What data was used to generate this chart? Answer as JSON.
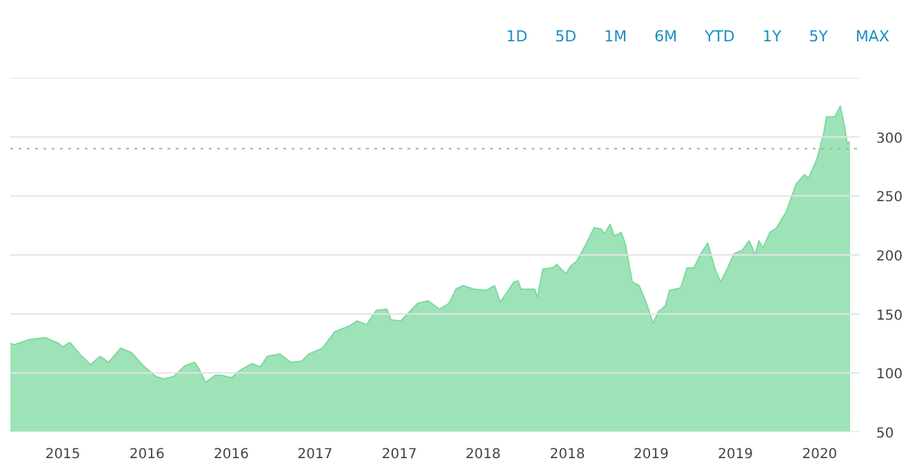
{
  "chart_data": {
    "type": "area",
    "annotations": [
      "1D",
      "5D",
      "1M",
      "6M",
      "YTD",
      "1Y",
      "5Y",
      "MAX"
    ],
    "x": [
      "2015-05-22",
      "2015-05-31",
      "2015-06-30",
      "2015-08-05",
      "2015-09-04",
      "2015-09-13",
      "2015-09-28",
      "2015-10-22",
      "2015-11-12",
      "2015-12-03",
      "2015-12-21",
      "2016-01-17",
      "2016-02-10",
      "2016-03-06",
      "2016-04-02",
      "2016-04-20",
      "2016-05-11",
      "2016-06-04",
      "2016-06-25",
      "2016-07-04",
      "2016-07-19",
      "2016-08-09",
      "2016-08-23",
      "2016-09-13",
      "2016-10-01",
      "2016-10-28",
      "2016-11-15",
      "2016-11-30",
      "2016-12-27",
      "2017-01-20",
      "2017-02-13",
      "2017-02-28",
      "2017-03-30",
      "2017-04-26",
      "2017-05-29",
      "2017-06-13",
      "2017-07-04",
      "2017-07-25",
      "2017-08-17",
      "2017-08-26",
      "2017-09-16",
      "2017-10-23",
      "2017-11-15",
      "2017-12-09",
      "2017-12-30",
      "2018-01-14",
      "2018-01-29",
      "2018-02-22",
      "2018-03-21",
      "2018-04-08",
      "2018-04-20",
      "2018-05-08",
      "2018-05-20",
      "2018-05-29",
      "2018-06-04",
      "2018-06-22",
      "2018-07-04",
      "2018-07-10",
      "2018-07-22",
      "2018-08-12",
      "2018-08-21",
      "2018-09-10",
      "2018-09-19",
      "2018-10-04",
      "2018-10-26",
      "2018-11-10",
      "2018-11-25",
      "2018-12-03",
      "2018-12-15",
      "2018-12-24",
      "2019-01-08",
      "2019-01-17",
      "2019-02-01",
      "2019-02-16",
      "2019-03-03",
      "2019-03-18",
      "2019-03-30",
      "2019-04-14",
      "2019-04-23",
      "2019-05-17",
      "2019-05-31",
      "2019-06-15",
      "2019-06-30",
      "2019-07-15",
      "2019-07-30",
      "2019-08-12",
      "2019-08-26",
      "2019-09-10",
      "2019-09-28",
      "2019-10-13",
      "2019-10-26",
      "2019-11-03",
      "2019-11-12",
      "2019-11-27",
      "2019-12-12",
      "2020-01-02",
      "2020-01-23",
      "2020-02-10",
      "2020-02-19",
      "2020-03-08",
      "2020-03-23",
      "2020-03-29",
      "2020-04-16",
      "2020-04-28",
      "2020-05-07",
      "2020-05-13",
      "2020-05-19"
    ],
    "series": [
      {
        "color": "#7ed9a0",
        "values": [
          125,
          124,
          128,
          130,
          125,
          122,
          126,
          115,
          107,
          114,
          109,
          121,
          117,
          106,
          97,
          95,
          97,
          106,
          109,
          104,
          92,
          98,
          98,
          96,
          102,
          108,
          105,
          114,
          116,
          109,
          110,
          116,
          121,
          135,
          140,
          144,
          141,
          153,
          154,
          145,
          144,
          159,
          161,
          154,
          159,
          171,
          174,
          171,
          170,
          174,
          160,
          170,
          177,
          178,
          171,
          171,
          171,
          164,
          188,
          189,
          192,
          184,
          190,
          195,
          211,
          223,
          222,
          218,
          226,
          216,
          219,
          209,
          177,
          174,
          160,
          142,
          152,
          157,
          170,
          172,
          189,
          189,
          201,
          210,
          189,
          177,
          188,
          201,
          204,
          212,
          200,
          212,
          206,
          219,
          223,
          237,
          260,
          268,
          265,
          281,
          303,
          317,
          317,
          326,
          309,
          294,
          296
        ]
      }
    ],
    "xlim": [
      "2015-05-22",
      "2020-06-09"
    ],
    "xticks": [
      {
        "value": "2015-09-13",
        "label": "2015"
      },
      {
        "value": "2016-03-14",
        "label": "2016"
      },
      {
        "value": "2016-09-13",
        "label": "2016"
      },
      {
        "value": "2017-03-14",
        "label": "2017"
      },
      {
        "value": "2017-09-13",
        "label": "2017"
      },
      {
        "value": "2018-03-14",
        "label": "2018"
      },
      {
        "value": "2018-09-13",
        "label": "2018"
      },
      {
        "value": "2019-03-14",
        "label": "2019"
      },
      {
        "value": "2019-09-13",
        "label": "2019"
      },
      {
        "value": "2020-03-14",
        "label": "2020"
      }
    ],
    "ylim": [
      50,
      350
    ],
    "yticks": [
      50,
      100,
      150,
      200,
      250,
      300,
      {
        "value": 350,
        "label": null
      }
    ],
    "grid": "y",
    "ref_lines": [
      {
        "axis": "y",
        "value": 290,
        "color": "#aaaaaa",
        "line_style": "dotted"
      }
    ]
  }
}
